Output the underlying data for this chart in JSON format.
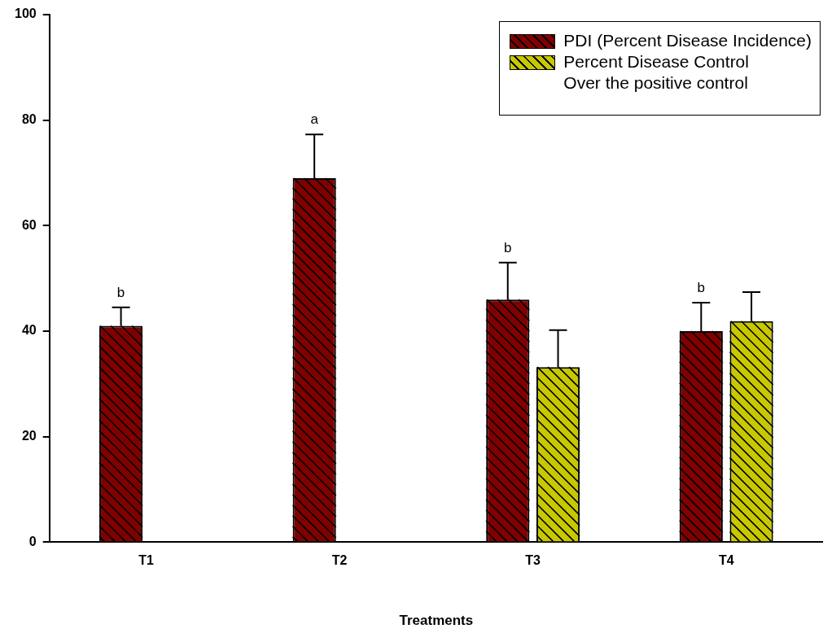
{
  "chart_data": {
    "type": "bar",
    "xlabel": "Treatments",
    "categories": [
      "T1",
      "T2",
      "T3",
      "T4"
    ],
    "series": [
      {
        "name": "PDI (Percent Disease Incidence)",
        "color": "#800000",
        "values": [
          41.0,
          69.0,
          46.0,
          40.0
        ],
        "errors": [
          3.5,
          8.3,
          7.0,
          5.4
        ]
      },
      {
        "name": "Percent Disease Control\nOver the positive control",
        "color": "#c8c800",
        "values": [
          null,
          null,
          33.2,
          41.9
        ],
        "errors": [
          null,
          null,
          7.0,
          5.5
        ]
      }
    ],
    "ylim": [
      0,
      100
    ],
    "yticks": [
      0,
      20,
      40,
      60,
      80,
      100
    ],
    "grid": false,
    "legend": "top right",
    "annotations": [
      "b",
      "a",
      "b",
      "b"
    ]
  }
}
